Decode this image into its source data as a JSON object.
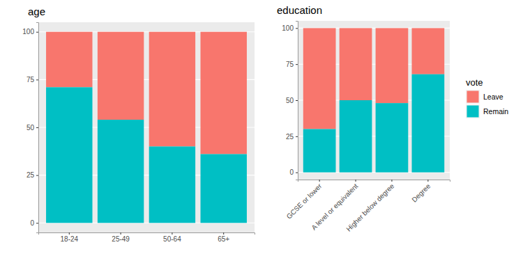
{
  "chart_data": [
    {
      "type": "bar",
      "title": "age",
      "stacked": true,
      "grid": true,
      "categories": [
        "18-24",
        "25-49",
        "50-64",
        "65+"
      ],
      "series": [
        {
          "name": "Leave",
          "color": "#F8766D",
          "values": [
            29,
            46,
            60,
            64
          ]
        },
        {
          "name": "Remain",
          "color": "#00BFC4",
          "values": [
            71,
            54,
            40,
            36
          ]
        }
      ],
      "ylim": [
        -5,
        105
      ],
      "yticks": [
        0,
        25,
        50,
        75,
        100
      ]
    },
    {
      "type": "bar",
      "title": "education",
      "stacked": true,
      "grid": true,
      "categories": [
        "GCSE or lower",
        "A level or equivalent",
        "Higher below degree",
        "Degree"
      ],
      "series": [
        {
          "name": "Leave",
          "color": "#F8766D",
          "values": [
            70,
            50,
            52,
            32
          ]
        },
        {
          "name": "Remain",
          "color": "#00BFC4",
          "values": [
            30,
            50,
            48,
            68
          ]
        }
      ],
      "ylim": [
        -5,
        105
      ],
      "yticks": [
        0,
        25,
        50,
        75,
        100
      ],
      "legend": "right",
      "legend_title": "vote"
    }
  ]
}
